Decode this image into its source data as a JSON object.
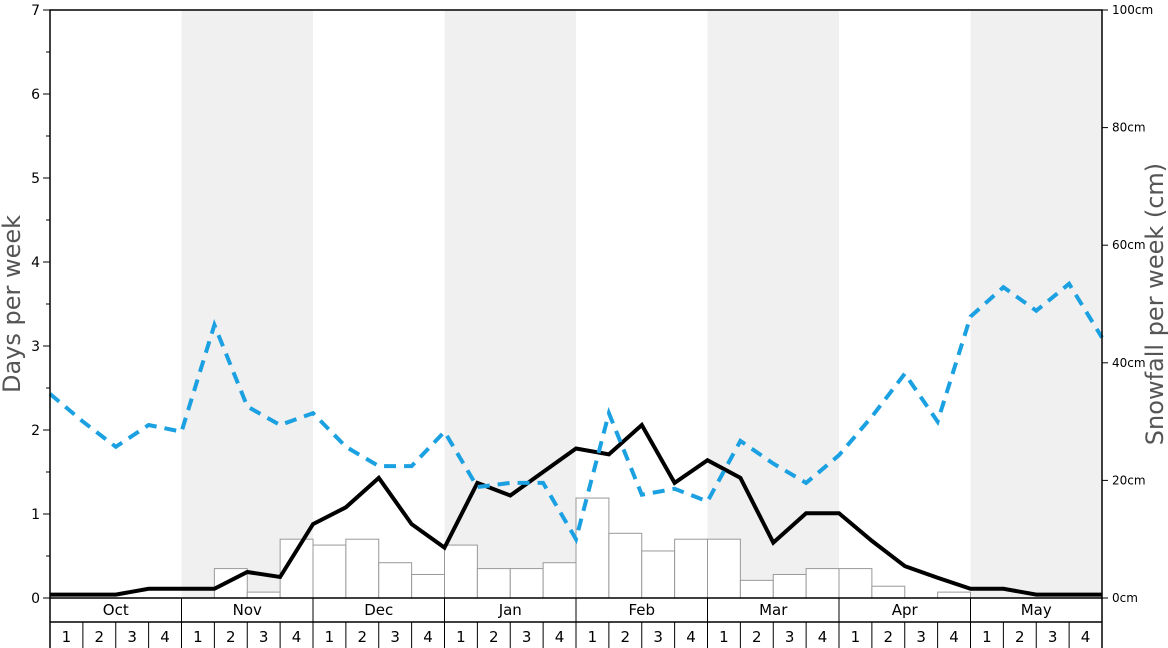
{
  "chart_data": {
    "type": "bar+line",
    "title": "",
    "ylabel_left": "Days per week",
    "ylabel_right": "Snowfall per week (cm)",
    "ylim_left": [
      0,
      7
    ],
    "ylim_right": [
      0,
      100
    ],
    "left_ticks": [
      "0",
      "1",
      "2",
      "3",
      "4",
      "5",
      "6",
      "7"
    ],
    "right_ticks": [
      "0cm",
      "20cm",
      "40cm",
      "60cm",
      "80cm",
      "100cm"
    ],
    "months": [
      "Oct",
      "Nov",
      "Dec",
      "Jan",
      "Feb",
      "Mar",
      "Apr",
      "May"
    ],
    "weeks": [
      "1",
      "2",
      "3",
      "4"
    ],
    "colors": {
      "shade": "#f0f0f0",
      "bar_fill": "#ffffff",
      "bar_stroke": "#999999",
      "solid_line": "#000000",
      "dashed_line": "#1ba1e2"
    },
    "snowfall_bars_cm": [
      0,
      0,
      0,
      0,
      0,
      5,
      1,
      10,
      9,
      10,
      6,
      4,
      9,
      5,
      5,
      6,
      17,
      11,
      8,
      10,
      10,
      3,
      4,
      5,
      5,
      2,
      0,
      1,
      0,
      0,
      0,
      0
    ],
    "series": [
      {
        "values": [
          0.04,
          0.04,
          0.04,
          0.11,
          0.11,
          0.11,
          0.31,
          0.25,
          0.88,
          1.08,
          1.43,
          0.88,
          0.6,
          1.37,
          1.22,
          1.5,
          1.78,
          1.71,
          2.06,
          1.37,
          1.64,
          1.43,
          0.66,
          1.01,
          1.01,
          0.68,
          0.38,
          0.24,
          0.11,
          0.11,
          0.04,
          0.04,
          0.04
        ]
      },
      {
        "style": "dashed",
        "values": [
          2.43,
          2.1,
          1.8,
          2.06,
          1.98,
          3.25,
          2.28,
          2.06,
          2.2,
          1.8,
          1.57,
          1.57,
          1.98,
          1.32,
          1.37,
          1.37,
          0.7,
          2.2,
          1.23,
          1.3,
          1.15,
          1.87,
          1.6,
          1.37,
          1.7,
          2.16,
          2.67,
          2.1,
          3.35,
          3.7,
          3.42,
          3.74,
          3.1
        ]
      }
    ]
  }
}
